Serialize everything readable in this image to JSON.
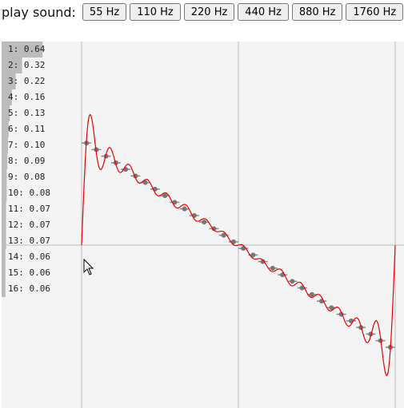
{
  "header": {
    "title": "play sound:",
    "buttons": [
      "55 Hz",
      "110 Hz",
      "220 Hz",
      "440 Hz",
      "880 Hz",
      "1760 Hz"
    ]
  },
  "harmonics": {
    "labels": [
      "1: 0.64",
      "2: 0.32",
      "3: 0.22",
      "4: 0.16",
      "5: 0.13",
      "6: 0.11",
      "7: 0.10",
      "8: 0.09",
      "9: 0.08",
      "10: 0.08",
      "11: 0.07",
      "12: 0.07",
      "13: 0.07",
      "14: 0.06",
      "15: 0.06",
      "16: 0.06"
    ],
    "amplitudes": [
      0.64,
      0.32,
      0.22,
      0.16,
      0.13,
      0.11,
      0.1,
      0.09,
      0.08,
      0.08,
      0.07,
      0.07,
      0.07,
      0.06,
      0.06,
      0.06
    ]
  }
}
